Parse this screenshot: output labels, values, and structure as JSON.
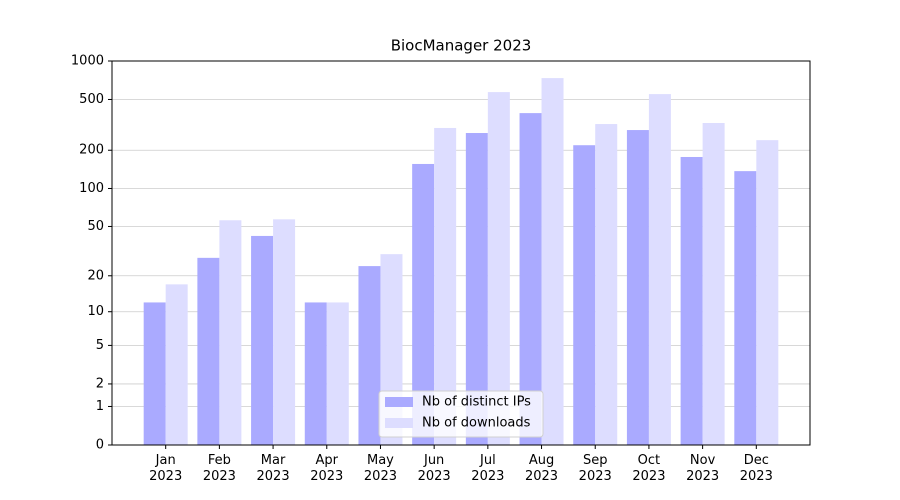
{
  "chart_data": {
    "type": "bar",
    "title": "BiocManager 2023",
    "categories": [
      "Jan\n2023",
      "Feb\n2023",
      "Mar\n2023",
      "Apr\n2023",
      "May\n2023",
      "Jun\n2023",
      "Jul\n2023",
      "Aug\n2023",
      "Sep\n2023",
      "Oct\n2023",
      "Nov\n2023",
      "Dec\n2023"
    ],
    "series": [
      {
        "name": "Nb of distinct IPs",
        "color": "#aaaaff",
        "values": [
          12,
          28,
          42,
          12,
          24,
          156,
          273,
          391,
          219,
          288,
          177,
          137
        ]
      },
      {
        "name": "Nb of downloads",
        "color": "#ddddff",
        "values": [
          17,
          56,
          57,
          12,
          30,
          299,
          571,
          735,
          321,
          551,
          327,
          240
        ]
      }
    ],
    "yscale": "log1p",
    "ylim": [
      0,
      1000
    ],
    "yticks": [
      0,
      1,
      2,
      5,
      10,
      20,
      50,
      100,
      200,
      500,
      1000
    ],
    "grid": true,
    "legend": "lower center"
  }
}
